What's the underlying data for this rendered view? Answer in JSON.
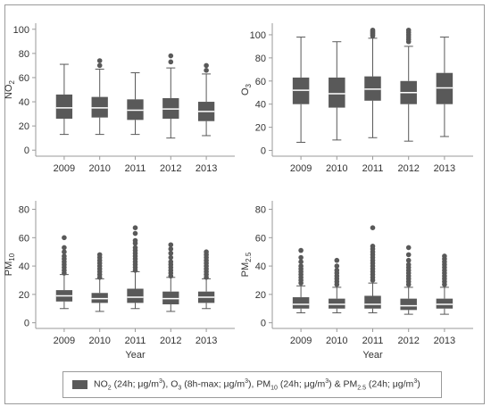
{
  "colors": {
    "box": "#595959",
    "median": "#ffffff",
    "whisker": "#595959",
    "outlier": "#595959",
    "axis": "#9a9a9a"
  },
  "legend": {
    "swatch_color": "#595959",
    "parts": [
      {
        "t": "NO"
      },
      {
        "t": "2",
        "sub": true
      },
      {
        "t": " (24h; μg/m"
      },
      {
        "t": "3",
        "sup": true
      },
      {
        "t": "), O"
      },
      {
        "t": "3",
        "sub": true
      },
      {
        "t": " (8h-max; μg/m"
      },
      {
        "t": "3",
        "sup": true
      },
      {
        "t": "), PM"
      },
      {
        "t": "10",
        "sub": true
      },
      {
        "t": " (24h; μg/m"
      },
      {
        "t": "3",
        "sup": true
      },
      {
        "t": ") & PM"
      },
      {
        "t": "2.5",
        "sub": true
      },
      {
        "t": " (24h; μg/m"
      },
      {
        "t": "3",
        "sup": true
      },
      {
        "t": ")"
      }
    ]
  },
  "chart_data": [
    {
      "type": "box",
      "ylabel": "NO2",
      "ylabel_main": "NO",
      "ylabel_sub": "2",
      "xlabel": "",
      "categories": [
        "2009",
        "2010",
        "2011",
        "2012",
        "2013"
      ],
      "ylim": [
        -5,
        105
      ],
      "yticks": [
        0,
        20,
        40,
        60,
        80,
        100
      ],
      "boxes": [
        {
          "whislo": 13,
          "q1": 26,
          "med": 35,
          "q3": 46,
          "whishi": 71,
          "fliers": []
        },
        {
          "whislo": 13,
          "q1": 27,
          "med": 35,
          "q3": 44,
          "whishi": 67,
          "fliers": [
            70,
            74
          ]
        },
        {
          "whislo": 13,
          "q1": 25,
          "med": 33,
          "q3": 42,
          "whishi": 64,
          "fliers": []
        },
        {
          "whislo": 10,
          "q1": 26,
          "med": 34,
          "q3": 43,
          "whishi": 68,
          "fliers": [
            73,
            78
          ]
        },
        {
          "whislo": 12,
          "q1": 24,
          "med": 32,
          "q3": 40,
          "whishi": 63,
          "fliers": [
            66,
            70
          ]
        }
      ]
    },
    {
      "type": "box",
      "ylabel": "O3",
      "ylabel_main": "O",
      "ylabel_sub": "3",
      "xlabel": "",
      "categories": [
        "2009",
        "2010",
        "2011",
        "2012",
        "2013"
      ],
      "ylim": [
        -5,
        110
      ],
      "yticks": [
        0,
        20,
        40,
        60,
        80,
        100
      ],
      "boxes": [
        {
          "whislo": 7,
          "q1": 40,
          "med": 52,
          "q3": 63,
          "whishi": 98,
          "fliers": []
        },
        {
          "whislo": 9,
          "q1": 37,
          "med": 49,
          "q3": 63,
          "whishi": 94,
          "fliers": []
        },
        {
          "whislo": 11,
          "q1": 43,
          "med": 53,
          "q3": 64,
          "whishi": 97,
          "fliers": [
            99,
            100,
            101,
            102,
            103,
            104
          ]
        },
        {
          "whislo": 8,
          "q1": 40,
          "med": 50,
          "q3": 60,
          "whishi": 90,
          "fliers": [
            94,
            96,
            98,
            100,
            102,
            104
          ]
        },
        {
          "whislo": 12,
          "q1": 40,
          "med": 54,
          "q3": 67,
          "whishi": 98,
          "fliers": []
        }
      ]
    },
    {
      "type": "box",
      "ylabel": "PM10",
      "ylabel_main": "PM",
      "ylabel_sub": "10",
      "xlabel": "Year",
      "categories": [
        "2009",
        "2010",
        "2011",
        "2012",
        "2013"
      ],
      "ylim": [
        -4,
        86
      ],
      "yticks": [
        0,
        20,
        40,
        60,
        80
      ],
      "boxes": [
        {
          "whislo": 10,
          "q1": 15,
          "med": 19,
          "q3": 23,
          "whishi": 34,
          "fliers": [
            35,
            37,
            39,
            41,
            43,
            45,
            47,
            50,
            53,
            60
          ]
        },
        {
          "whislo": 8,
          "q1": 14,
          "med": 17,
          "q3": 21,
          "whishi": 31,
          "fliers": [
            32,
            34,
            36,
            38,
            40,
            42,
            44,
            46,
            48
          ]
        },
        {
          "whislo": 10,
          "q1": 14,
          "med": 18,
          "q3": 24,
          "whishi": 36,
          "fliers": [
            37,
            39,
            41,
            43,
            45,
            47,
            49,
            51,
            53,
            56,
            58,
            63,
            67
          ]
        },
        {
          "whislo": 8,
          "q1": 13,
          "med": 17,
          "q3": 22,
          "whishi": 32,
          "fliers": [
            33,
            35,
            37,
            39,
            41,
            43,
            46,
            49,
            52,
            55
          ]
        },
        {
          "whislo": 10,
          "q1": 14,
          "med": 18,
          "q3": 22,
          "whishi": 31,
          "fliers": [
            32,
            34,
            36,
            38,
            40,
            42,
            44,
            46,
            48,
            50
          ]
        }
      ]
    },
    {
      "type": "box",
      "ylabel": "PM2.5",
      "ylabel_main": "PM",
      "ylabel_sub": "2.5",
      "xlabel": "Year",
      "categories": [
        "2009",
        "2010",
        "2011",
        "2012",
        "2013"
      ],
      "ylim": [
        -4,
        86
      ],
      "yticks": [
        0,
        20,
        40,
        60,
        80
      ],
      "boxes": [
        {
          "whislo": 7,
          "q1": 10,
          "med": 13,
          "q3": 18,
          "whishi": 26,
          "fliers": [
            28,
            30,
            32,
            34,
            36,
            38,
            40,
            43,
            46,
            51
          ]
        },
        {
          "whislo": 7,
          "q1": 10,
          "med": 13,
          "q3": 17,
          "whishi": 25,
          "fliers": [
            27,
            29,
            31,
            33,
            35,
            37,
            40,
            44
          ]
        },
        {
          "whislo": 7,
          "q1": 10,
          "med": 13,
          "q3": 19,
          "whishi": 28,
          "fliers": [
            30,
            32,
            34,
            36,
            38,
            40,
            42,
            44,
            46,
            48,
            50,
            52,
            54,
            67
          ]
        },
        {
          "whislo": 6,
          "q1": 9,
          "med": 12,
          "q3": 17,
          "whishi": 25,
          "fliers": [
            27,
            29,
            31,
            33,
            35,
            37,
            39,
            41,
            44,
            48,
            53
          ]
        },
        {
          "whislo": 6,
          "q1": 10,
          "med": 13,
          "q3": 17,
          "whishi": 25,
          "fliers": [
            27,
            29,
            31,
            33,
            35,
            37,
            39,
            41,
            43,
            45,
            47
          ]
        }
      ]
    }
  ]
}
